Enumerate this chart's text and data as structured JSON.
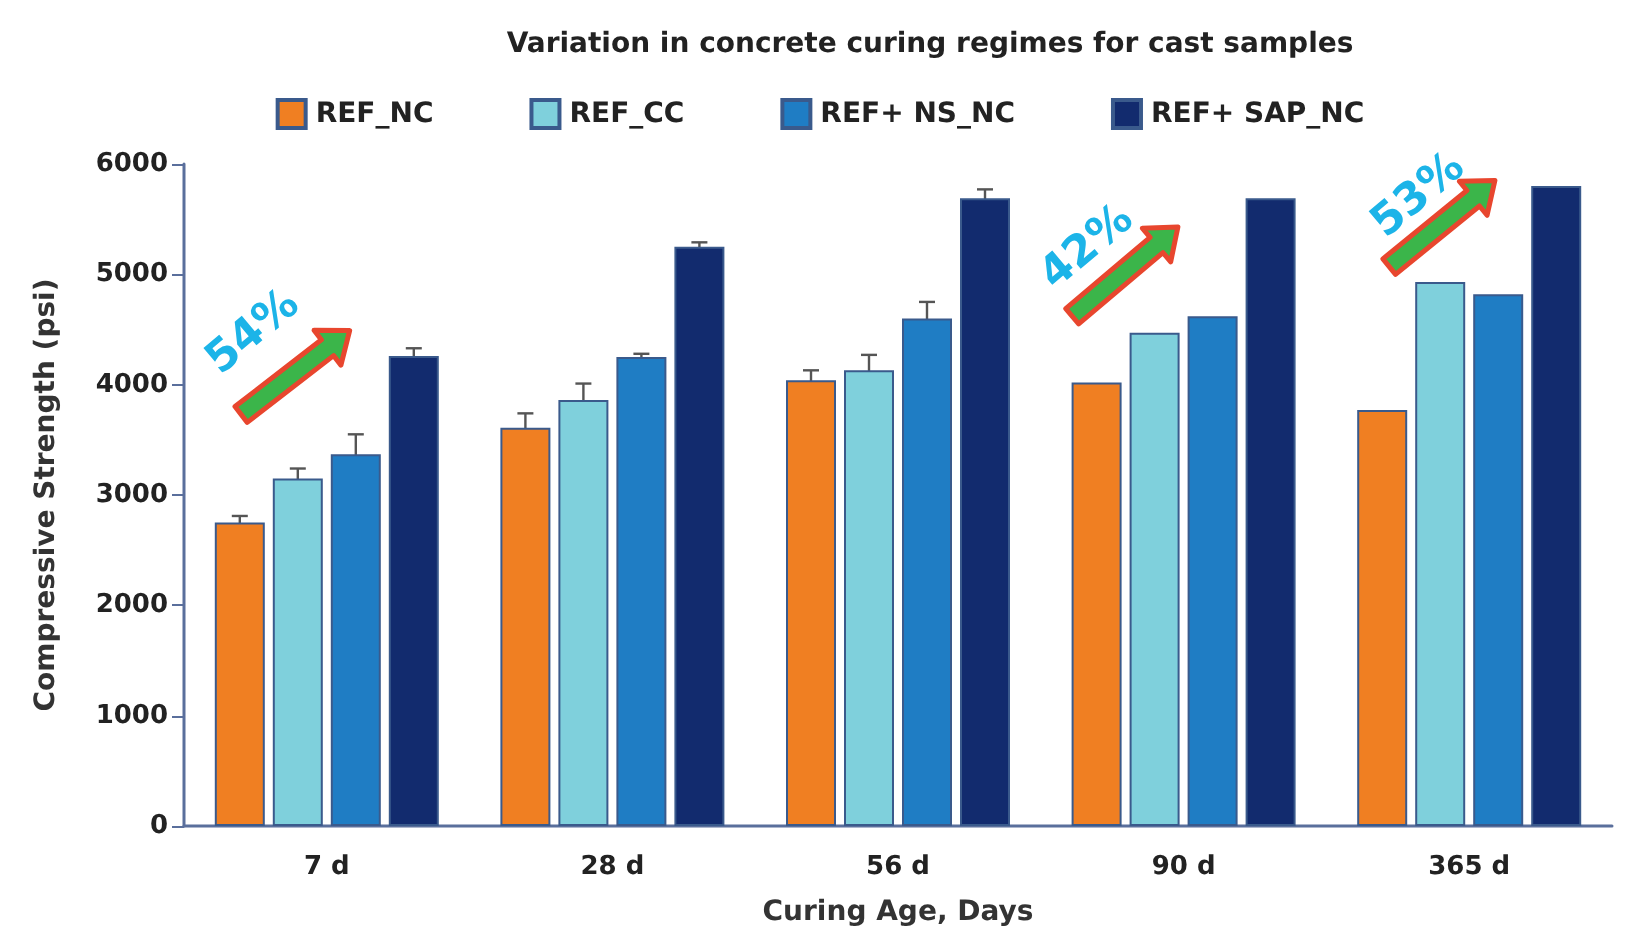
{
  "chart_data": {
    "type": "bar",
    "title": "Variation in concrete curing regimes for cast samples",
    "xlabel": "Curing Age, Days",
    "ylabel": "Compressive Strength (psi)",
    "categories": [
      "7 d",
      "28 d",
      "56 d",
      "90 d",
      "365 d"
    ],
    "series": [
      {
        "name": "REF_NC",
        "color": "#f07f22",
        "values": [
          2750,
          3610,
          4040,
          4020,
          3770
        ],
        "errors": [
          60,
          130,
          90,
          null,
          null
        ]
      },
      {
        "name": "REF_CC",
        "color": "#7fd0dc",
        "values": [
          3150,
          3860,
          4130,
          4470,
          4930
        ],
        "errors": [
          90,
          150,
          140,
          null,
          null
        ]
      },
      {
        "name": "REF+ NS_NC",
        "color": "#1f7dc4",
        "values": [
          3370,
          4250,
          4600,
          4620,
          4820
        ],
        "errors": [
          180,
          30,
          150,
          null,
          null
        ]
      },
      {
        "name": "REF+ SAP_NC",
        "color": "#122b6e",
        "values": [
          4260,
          5250,
          5690,
          5690,
          5800
        ],
        "errors": [
          70,
          40,
          80,
          null,
          null
        ]
      }
    ],
    "ylim": [
      0,
      6000
    ],
    "yticks": [
      0,
      1000,
      2000,
      3000,
      4000,
      5000,
      6000
    ],
    "annotations": [
      "54%",
      "42%",
      "53%"
    ],
    "grid": false,
    "legend": "top"
  }
}
